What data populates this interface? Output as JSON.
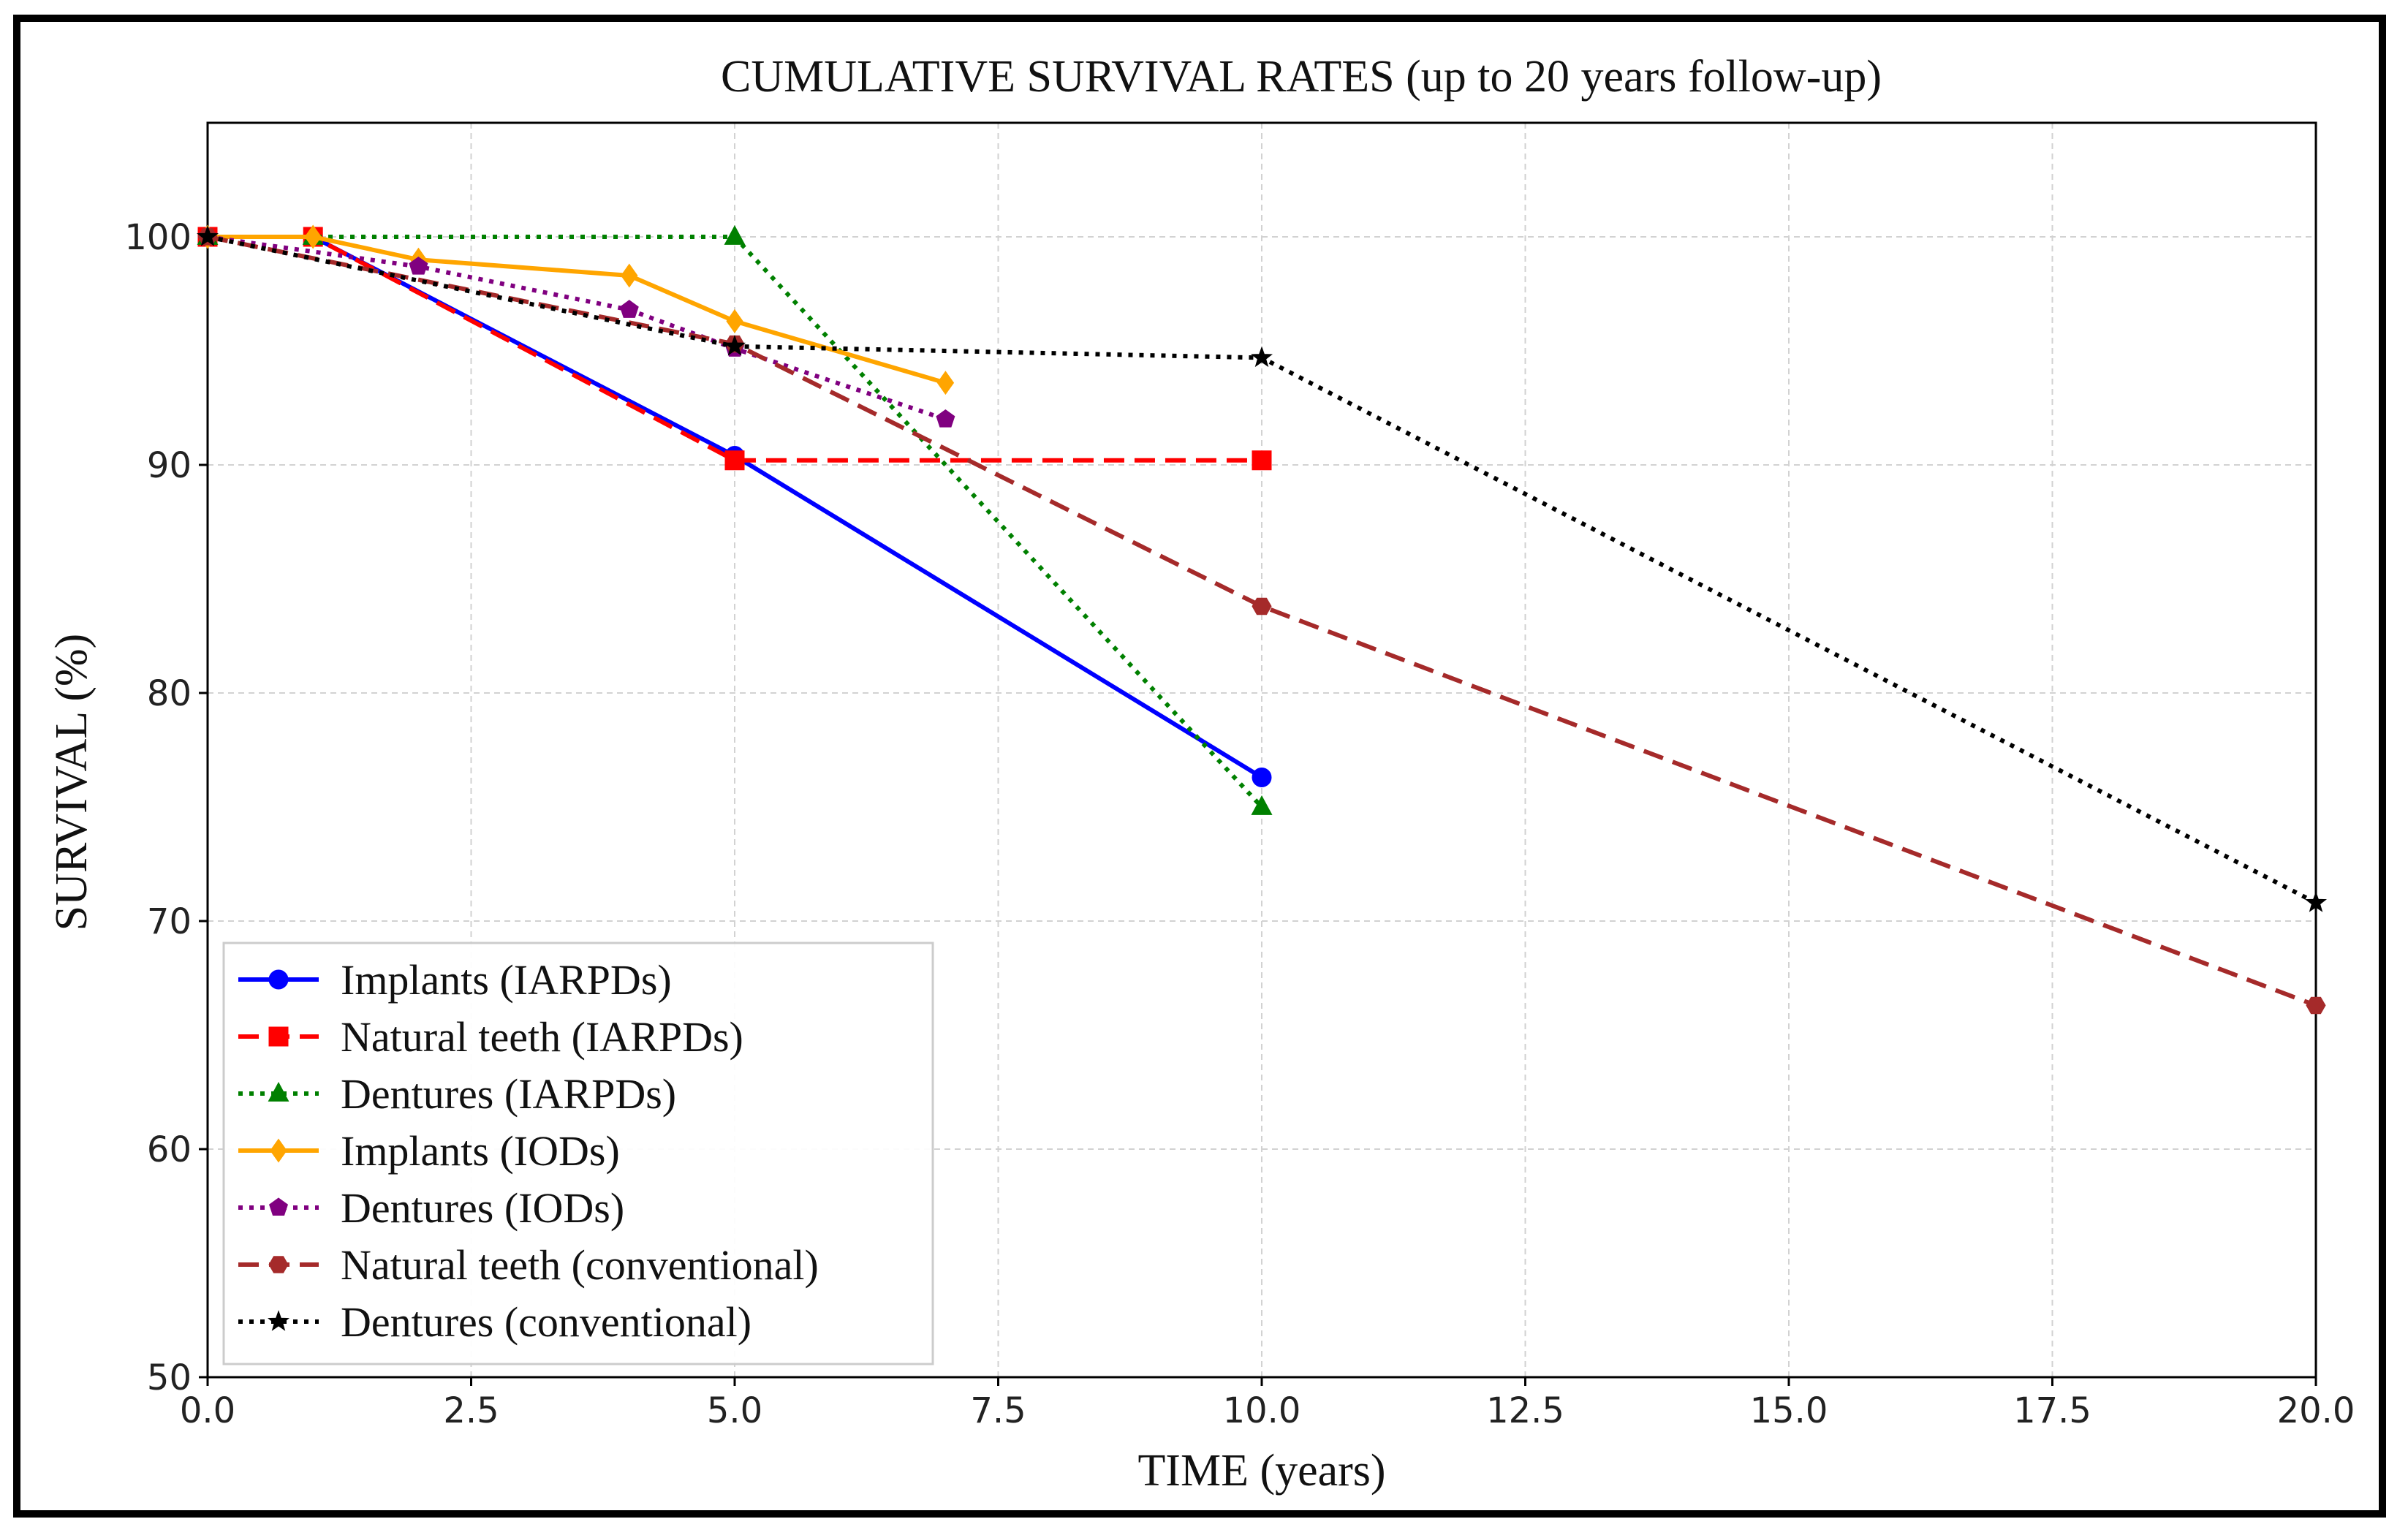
{
  "chart_data": {
    "type": "line",
    "title": "CUMULATIVE SURVIVAL RATES (up to 20 years follow-up)",
    "xlabel": "TIME (years)",
    "ylabel": "SURVIVAL (%)",
    "xlim": [
      0,
      20
    ],
    "ylim": [
      50,
      105
    ],
    "xticks": [
      0,
      2.5,
      5,
      7.5,
      10,
      12.5,
      15,
      17.5,
      20
    ],
    "xtick_labels": [
      "0.0",
      "2.5",
      "5.0",
      "7.5",
      "10.0",
      "12.5",
      "15.0",
      "17.5",
      "20.0"
    ],
    "yticks": [
      50,
      60,
      70,
      80,
      90,
      100
    ],
    "ytick_labels": [
      "50",
      "60",
      "70",
      "80",
      "90",
      "100"
    ],
    "grid": true,
    "legend_position": "lower-left",
    "series": [
      {
        "name": "Implants (IARPDs)",
        "color": "#0000ff",
        "dash": "solid",
        "marker": "circle",
        "x": [
          0,
          1,
          5,
          10
        ],
        "y": [
          100,
          100,
          90.4,
          76.3
        ]
      },
      {
        "name": "Natural teeth (IARPDs)",
        "color": "#ff0000",
        "dash": "dashed",
        "marker": "square",
        "x": [
          0,
          1,
          5,
          10
        ],
        "y": [
          100,
          100,
          90.2,
          90.2
        ]
      },
      {
        "name": "Dentures (IARPDs)",
        "color": "#008000",
        "dash": "dotted",
        "marker": "triangle",
        "x": [
          0,
          1,
          5,
          10
        ],
        "y": [
          100,
          100,
          100,
          75
        ]
      },
      {
        "name": "Implants (IODs)",
        "color": "#ffa500",
        "dash": "solid",
        "marker": "diamond",
        "x": [
          0,
          1,
          2,
          4,
          5,
          7
        ],
        "y": [
          100,
          100,
          99,
          98.3,
          96.3,
          93.6
        ]
      },
      {
        "name": "Dentures (IODs)",
        "color": "#800080",
        "dash": "dotted",
        "marker": "pentagon",
        "x": [
          0,
          2,
          4,
          5,
          7
        ],
        "y": [
          100,
          98.7,
          96.8,
          95.1,
          92
        ]
      },
      {
        "name": "Natural teeth (conventional)",
        "color": "#a52a2a",
        "dash": "dashed",
        "marker": "hexagon",
        "x": [
          0,
          5,
          10,
          20
        ],
        "y": [
          100,
          95.3,
          83.8,
          66.3
        ]
      },
      {
        "name": "Dentures (conventional)",
        "color": "#000000",
        "dash": "dotted",
        "marker": "star",
        "x": [
          0,
          5,
          10,
          20
        ],
        "y": [
          100,
          95.2,
          94.7,
          70.8
        ]
      }
    ]
  }
}
